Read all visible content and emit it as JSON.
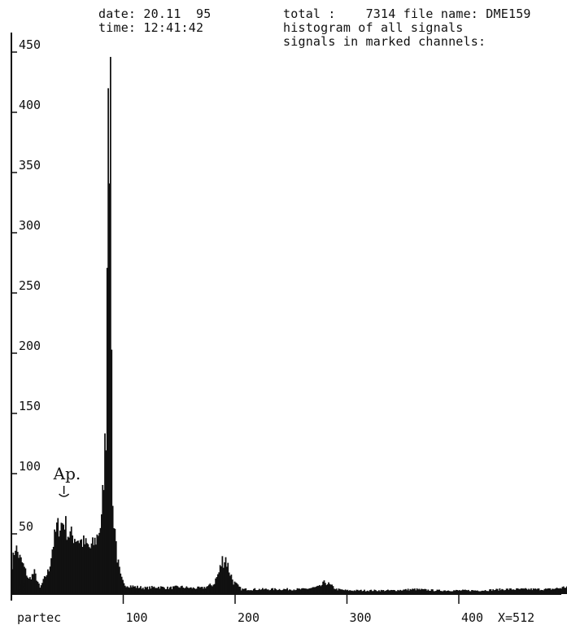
{
  "header": {
    "date_label": "date:",
    "date_value": "20.11  95",
    "time_label": "time:",
    "time_value": "12:41:42",
    "total_label": "total :",
    "total_value": "7314",
    "filename_label": "file name:",
    "filename_value": "DME159",
    "line2": "histogram of all signals",
    "line3": "signals in marked channels:"
  },
  "footer": {
    "vendor": "partec",
    "x_range": "X=512"
  },
  "annotation": {
    "text": "Ap.",
    "channel": 47,
    "value": 75
  },
  "chart_data": {
    "type": "histogram",
    "title": "",
    "xlabel": "",
    "ylabel": "",
    "xlim": [
      0,
      512
    ],
    "ylim": [
      0,
      450
    ],
    "x_ticks": [
      100,
      200,
      300,
      400
    ],
    "y_ticks": [
      0,
      50,
      100,
      150,
      200,
      250,
      300,
      350,
      400,
      450
    ],
    "y_tick_labels": [
      "0",
      "50",
      "100",
      "150",
      "200",
      "250",
      "300",
      "350",
      "400",
      "450"
    ],
    "grid": false,
    "color": "#111111",
    "series": [
      {
        "x": [
          0,
          3,
          6,
          10,
          15,
          20,
          25,
          30,
          33,
          36,
          40,
          44,
          47,
          50,
          55,
          60,
          65,
          70,
          75,
          80,
          84,
          86,
          88,
          90,
          92,
          94,
          97,
          100,
          110,
          120,
          130,
          140,
          150,
          160,
          170,
          180,
          185,
          188,
          191,
          194,
          198,
          205,
          220,
          240,
          260,
          275,
          280,
          290,
          300,
          320,
          340,
          360,
          380,
          400,
          420,
          440,
          460,
          480,
          490,
          495,
          500,
          505,
          508,
          512
        ],
        "y": [
          25,
          40,
          32,
          24,
          12,
          18,
          5,
          15,
          20,
          38,
          55,
          58,
          60,
          50,
          48,
          45,
          42,
          38,
          45,
          60,
          140,
          420,
          380,
          70,
          55,
          30,
          15,
          8,
          6,
          5,
          6,
          5,
          6,
          5,
          5,
          8,
          18,
          28,
          30,
          20,
          10,
          4,
          4,
          4,
          4,
          6,
          10,
          4,
          3,
          3,
          3,
          4,
          3,
          3,
          3,
          4,
          4,
          4,
          5,
          6,
          6,
          12,
          8,
          6
        ]
      }
    ]
  }
}
